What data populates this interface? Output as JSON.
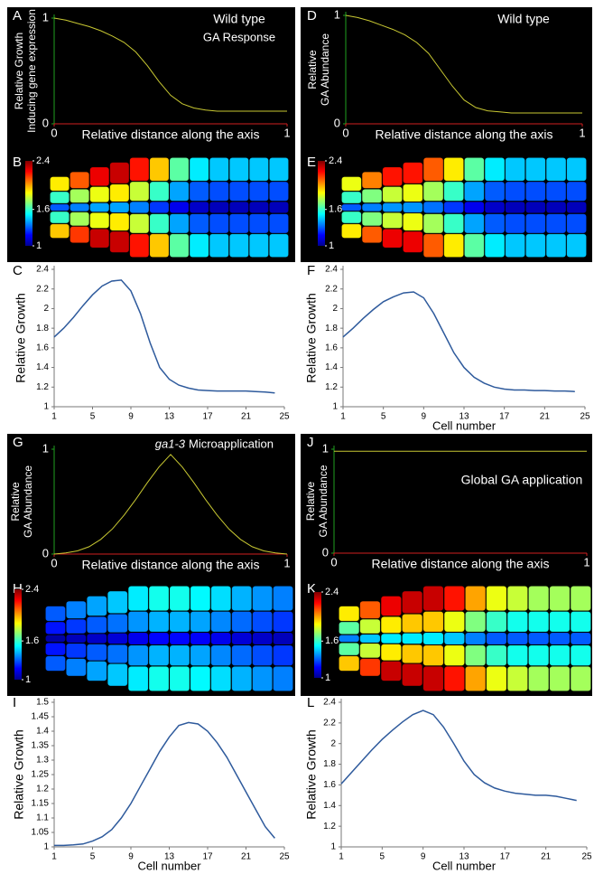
{
  "chart_data": [
    {
      "type": "line",
      "panel": "A",
      "title": "Wild type",
      "subtitle": "GA Response",
      "y_label": [
        "Relative Growth",
        "Inducing gene expression"
      ],
      "x_label": "Relative distance along the axis",
      "x": [
        0,
        0.05,
        0.1,
        0.15,
        0.2,
        0.25,
        0.3,
        0.35,
        0.4,
        0.45,
        0.5,
        0.55,
        0.6,
        0.65,
        0.7,
        0.75,
        0.8,
        0.85,
        0.9,
        0.95,
        1
      ],
      "values": [
        1,
        0.98,
        0.95,
        0.92,
        0.88,
        0.83,
        0.77,
        0.68,
        0.55,
        0.4,
        0.27,
        0.19,
        0.15,
        0.13,
        0.12,
        0.12,
        0.12,
        0.12,
        0.12,
        0.12,
        0.12
      ],
      "xlim": [
        0,
        1
      ],
      "ylim": [
        0,
        1
      ],
      "xticks": [
        0,
        1
      ],
      "yticks": [
        0,
        1
      ],
      "color": "#c8c832",
      "background": "#000000"
    },
    {
      "type": "heatmap",
      "panel": "B",
      "colormap": "jet",
      "zlim": [
        1,
        2.4
      ],
      "zticks": [
        2.4,
        1.6,
        1
      ],
      "rows": [
        [
          1.9,
          2.1,
          2.25,
          2.3,
          2.2,
          1.95,
          1.65,
          1.5,
          1.45,
          1.45,
          1.45,
          1.45
        ],
        [
          1.6,
          1.75,
          1.85,
          1.9,
          1.8,
          1.6,
          1.4,
          1.3,
          1.28,
          1.28,
          1.28,
          1.28
        ],
        [
          1.3,
          1.35,
          1.4,
          1.4,
          1.35,
          1.25,
          1.15,
          1.1,
          1.08,
          1.08,
          1.08,
          1.08
        ],
        [
          1.6,
          1.75,
          1.85,
          1.9,
          1.8,
          1.6,
          1.4,
          1.3,
          1.28,
          1.28,
          1.28,
          1.28
        ],
        [
          1.95,
          2.15,
          2.3,
          2.3,
          2.2,
          1.95,
          1.65,
          1.5,
          1.45,
          1.45,
          1.45,
          1.45
        ]
      ]
    },
    {
      "type": "line",
      "panel": "C",
      "y_label": "Relative Growth",
      "x": [
        1,
        2,
        3,
        4,
        5,
        6,
        7,
        8,
        9,
        10,
        11,
        12,
        13,
        14,
        15,
        16,
        17,
        18,
        19,
        20,
        21,
        22,
        23,
        24
      ],
      "values": [
        1.71,
        1.8,
        1.91,
        2.03,
        2.14,
        2.23,
        2.28,
        2.29,
        2.18,
        1.95,
        1.65,
        1.4,
        1.28,
        1.22,
        1.19,
        1.17,
        1.165,
        1.16,
        1.16,
        1.16,
        1.16,
        1.155,
        1.15,
        1.14
      ],
      "xlim": [
        1,
        25
      ],
      "ylim": [
        1,
        2.4
      ],
      "xticks": [
        1,
        5,
        9,
        13,
        17,
        21,
        25
      ],
      "yticks": [
        1,
        1.2,
        1.4,
        1.6,
        1.8,
        2,
        2.2,
        2.4
      ],
      "color": "#2e5a9c",
      "background": "#ffffff"
    },
    {
      "type": "line",
      "panel": "D",
      "title": "Wild type",
      "y_label": [
        "Relative",
        "GA Abundance"
      ],
      "x_label": "Relative distance along the axis",
      "x": [
        0,
        0.05,
        0.1,
        0.15,
        0.2,
        0.25,
        0.3,
        0.35,
        0.4,
        0.45,
        0.5,
        0.55,
        0.6,
        0.65,
        0.7,
        0.75,
        0.8,
        0.85,
        0.9,
        0.95,
        1
      ],
      "values": [
        1,
        0.98,
        0.95,
        0.91,
        0.87,
        0.82,
        0.75,
        0.65,
        0.5,
        0.35,
        0.22,
        0.15,
        0.12,
        0.11,
        0.1,
        0.1,
        0.1,
        0.1,
        0.1,
        0.1,
        0.1
      ],
      "xlim": [
        0,
        1
      ],
      "ylim": [
        0,
        1
      ],
      "xticks": [
        0,
        1
      ],
      "yticks": [
        0,
        1
      ],
      "color": "#c8c832",
      "background": "#000000"
    },
    {
      "type": "heatmap",
      "panel": "E",
      "colormap": "jet",
      "zlim": [
        1,
        2.4
      ],
      "zticks": [
        2.4,
        1.6,
        1
      ],
      "rows": [
        [
          1.85,
          2.05,
          2.2,
          2.2,
          2.1,
          1.9,
          1.65,
          1.5,
          1.45,
          1.45,
          1.45,
          1.45
        ],
        [
          1.6,
          1.7,
          1.8,
          1.85,
          1.75,
          1.6,
          1.4,
          1.3,
          1.28,
          1.28,
          1.28,
          1.28
        ],
        [
          1.3,
          1.35,
          1.38,
          1.38,
          1.33,
          1.25,
          1.15,
          1.1,
          1.08,
          1.08,
          1.08,
          1.08
        ],
        [
          1.6,
          1.7,
          1.8,
          1.85,
          1.75,
          1.6,
          1.4,
          1.3,
          1.28,
          1.28,
          1.28,
          1.28
        ],
        [
          1.9,
          2.1,
          2.25,
          2.25,
          2.1,
          1.9,
          1.65,
          1.5,
          1.45,
          1.45,
          1.45,
          1.45
        ]
      ]
    },
    {
      "type": "line",
      "panel": "F",
      "y_label": "Relative Growth",
      "x_label": "Cell number",
      "x": [
        1,
        2,
        3,
        4,
        5,
        6,
        7,
        8,
        9,
        10,
        11,
        12,
        13,
        14,
        15,
        16,
        17,
        18,
        19,
        20,
        21,
        22,
        23,
        24
      ],
      "values": [
        1.71,
        1.8,
        1.9,
        1.99,
        2.07,
        2.12,
        2.16,
        2.17,
        2.11,
        1.95,
        1.75,
        1.55,
        1.4,
        1.3,
        1.24,
        1.2,
        1.18,
        1.17,
        1.17,
        1.165,
        1.165,
        1.16,
        1.16,
        1.155
      ],
      "xlim": [
        1,
        25
      ],
      "ylim": [
        1,
        2.4
      ],
      "xticks": [
        1,
        5,
        9,
        13,
        17,
        21,
        25
      ],
      "yticks": [
        1,
        1.2,
        1.4,
        1.6,
        1.8,
        2,
        2.2,
        2.4
      ],
      "color": "#2e5a9c",
      "background": "#ffffff"
    },
    {
      "type": "line",
      "panel": "G",
      "title_italic": "ga1-3",
      "title": "Microapplication",
      "y_label": [
        "Relative",
        "GA Abundance"
      ],
      "x_label": "Relative distance along the axis",
      "x": [
        0,
        0.05,
        0.1,
        0.15,
        0.2,
        0.25,
        0.3,
        0.35,
        0.4,
        0.45,
        0.5,
        0.55,
        0.6,
        0.65,
        0.7,
        0.75,
        0.8,
        0.85,
        0.9,
        0.95,
        1
      ],
      "values": [
        0,
        0.01,
        0.03,
        0.07,
        0.14,
        0.24,
        0.37,
        0.52,
        0.68,
        0.83,
        0.95,
        0.83,
        0.68,
        0.52,
        0.37,
        0.24,
        0.14,
        0.07,
        0.03,
        0.01,
        0
      ],
      "xlim": [
        0,
        1
      ],
      "ylim": [
        0,
        1
      ],
      "xticks": [
        0,
        1
      ],
      "yticks": [
        0,
        1
      ],
      "color": "#c8c832",
      "background": "#000000"
    },
    {
      "type": "heatmap",
      "panel": "H",
      "colormap": "jet",
      "zlim": [
        1,
        2.4
      ],
      "zticks": [
        2.4,
        1.6,
        1
      ],
      "rows": [
        [
          1.3,
          1.35,
          1.4,
          1.45,
          1.5,
          1.55,
          1.55,
          1.52,
          1.48,
          1.42,
          1.38,
          1.35
        ],
        [
          1.2,
          1.25,
          1.3,
          1.33,
          1.38,
          1.42,
          1.42,
          1.4,
          1.36,
          1.32,
          1.28,
          1.25
        ],
        [
          1.05,
          1.08,
          1.1,
          1.12,
          1.15,
          1.18,
          1.18,
          1.17,
          1.15,
          1.12,
          1.1,
          1.08
        ],
        [
          1.2,
          1.25,
          1.3,
          1.33,
          1.38,
          1.42,
          1.42,
          1.4,
          1.36,
          1.32,
          1.28,
          1.25
        ],
        [
          1.3,
          1.35,
          1.4,
          1.45,
          1.5,
          1.55,
          1.55,
          1.52,
          1.48,
          1.42,
          1.38,
          1.35
        ]
      ]
    },
    {
      "type": "line",
      "panel": "I",
      "y_label": "Relative Growth",
      "x_label": "Cell number",
      "x": [
        1,
        2,
        3,
        4,
        5,
        6,
        7,
        8,
        9,
        10,
        11,
        12,
        13,
        14,
        15,
        16,
        17,
        18,
        19,
        20,
        21,
        22,
        23,
        24
      ],
      "values": [
        1.005,
        1.005,
        1.007,
        1.01,
        1.02,
        1.035,
        1.06,
        1.1,
        1.15,
        1.21,
        1.27,
        1.33,
        1.38,
        1.42,
        1.43,
        1.425,
        1.4,
        1.36,
        1.31,
        1.25,
        1.19,
        1.13,
        1.07,
        1.03
      ],
      "xlim": [
        1,
        25
      ],
      "ylim": [
        1,
        1.5
      ],
      "xticks": [
        1,
        5,
        9,
        13,
        17,
        21,
        25
      ],
      "yticks": [
        1,
        1.05,
        1.1,
        1.15,
        1.2,
        1.25,
        1.3,
        1.35,
        1.4,
        1.45,
        1.5
      ],
      "color": "#2e5a9c",
      "background": "#ffffff"
    },
    {
      "type": "line",
      "panel": "J",
      "title": "Global GA application",
      "y_label": [
        "Relative",
        "GA Abundance"
      ],
      "x_label": "Relative distance along the axis",
      "x": [
        0,
        1
      ],
      "values": [
        0.98,
        0.98
      ],
      "xlim": [
        0,
        1
      ],
      "ylim": [
        0,
        1
      ],
      "xticks": [
        0,
        1
      ],
      "yticks": [
        0,
        1
      ],
      "color": "#c8c832",
      "background": "#000000"
    },
    {
      "type": "heatmap",
      "panel": "K",
      "colormap": "jet",
      "zlim": [
        1,
        2.4
      ],
      "zticks": [
        2.4,
        1.6,
        1
      ],
      "rows": [
        [
          1.9,
          2.1,
          2.25,
          2.3,
          2.3,
          2.2,
          2.0,
          1.85,
          1.8,
          1.75,
          1.75,
          1.75
        ],
        [
          1.65,
          1.8,
          1.9,
          1.95,
          1.95,
          1.85,
          1.7,
          1.6,
          1.55,
          1.55,
          1.55,
          1.55
        ],
        [
          1.35,
          1.45,
          1.5,
          1.5,
          1.5,
          1.45,
          1.35,
          1.3,
          1.3,
          1.3,
          1.3,
          1.3
        ],
        [
          1.65,
          1.8,
          1.9,
          1.95,
          1.95,
          1.85,
          1.7,
          1.6,
          1.55,
          1.55,
          1.55,
          1.55
        ],
        [
          1.95,
          2.15,
          2.3,
          2.3,
          2.3,
          2.2,
          2.0,
          1.85,
          1.8,
          1.75,
          1.75,
          1.75
        ]
      ]
    },
    {
      "type": "line",
      "panel": "L",
      "y_label": "Relative Growth",
      "x_label": "Cell number",
      "x": [
        1,
        2,
        3,
        4,
        5,
        6,
        7,
        8,
        9,
        10,
        11,
        12,
        13,
        14,
        15,
        16,
        17,
        18,
        19,
        20,
        21,
        22,
        23,
        24
      ],
      "values": [
        1.61,
        1.72,
        1.83,
        1.94,
        2.04,
        2.13,
        2.21,
        2.28,
        2.32,
        2.28,
        2.16,
        2.0,
        1.83,
        1.7,
        1.62,
        1.57,
        1.54,
        1.52,
        1.51,
        1.5,
        1.5,
        1.49,
        1.47,
        1.45
      ],
      "xlim": [
        1,
        25
      ],
      "ylim": [
        1,
        2.4
      ],
      "xticks": [
        1,
        5,
        9,
        13,
        17,
        21,
        25
      ],
      "yticks": [
        1,
        1.2,
        1.4,
        1.6,
        1.8,
        2,
        2.2,
        2.4
      ],
      "color": "#2e5a9c",
      "background": "#ffffff"
    }
  ]
}
